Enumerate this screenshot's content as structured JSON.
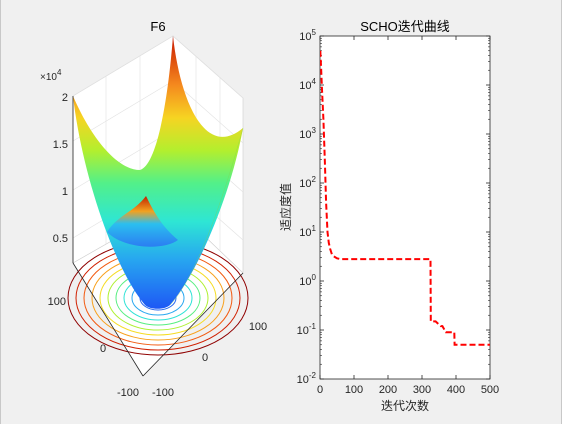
{
  "figure": {
    "background": "#f0f0f0",
    "axes_background": "#ffffff"
  },
  "chart_data": [
    {
      "type": "surface",
      "title": "F6",
      "zlabel_exponent": "×10",
      "zlabel_exponent_power": "4",
      "xlim": [
        -100,
        100
      ],
      "ylim": [
        -100,
        100
      ],
      "zlim": [
        0,
        20000
      ],
      "x_ticks": [
        "-100",
        "0",
        "100"
      ],
      "y_ticks": [
        "-100",
        "0",
        "100"
      ],
      "z_ticks": [
        "0.5",
        "1",
        "1.5",
        "2"
      ],
      "colormap": "jet",
      "contour_projection": true,
      "grid": true
    },
    {
      "type": "line",
      "title": "SCHO迭代曲线",
      "xlabel": "迭代次数",
      "ylabel": "适应度值",
      "xlim": [
        0,
        500
      ],
      "ylim": [
        0.01,
        100000
      ],
      "yscale": "log",
      "x_ticks": [
        "0",
        "100",
        "200",
        "300",
        "400",
        "500"
      ],
      "y_tick_exponents": [
        "-2",
        "-1",
        "0",
        "1",
        "2",
        "3",
        "4",
        "5"
      ],
      "y_tick_base": "10",
      "grid": false,
      "series": [
        {
          "color": "#ff0000",
          "style": "dashed",
          "x": [
            1,
            3,
            6,
            10,
            14,
            18,
            22,
            26,
            30,
            35,
            40,
            50,
            60,
            75,
            100,
            200,
            300,
            325,
            326,
            340,
            355,
            360,
            370,
            380,
            395,
            396,
            450,
            500
          ],
          "y": [
            50000,
            25000,
            8000,
            2000,
            300,
            40,
            10,
            6,
            4.5,
            3.5,
            3.2,
            2.9,
            2.8,
            2.8,
            2.8,
            2.8,
            2.8,
            2.8,
            0.15,
            0.15,
            0.12,
            0.12,
            0.09,
            0.09,
            0.09,
            0.05,
            0.05,
            0.05
          ]
        }
      ]
    }
  ]
}
